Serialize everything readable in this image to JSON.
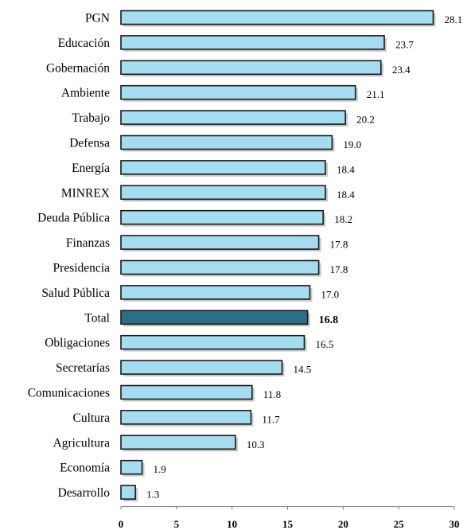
{
  "chart_data": {
    "type": "bar",
    "orientation": "horizontal",
    "categories": [
      "PGN",
      "Educación",
      "Gobernación",
      "Ambiente",
      "Trabajo",
      "Defensa",
      "Energía",
      "MINREX",
      "Deuda Pública",
      "Finanzas",
      "Presidencia",
      "Salud Pública",
      "Total",
      "Obligaciones",
      "Secretarías",
      "Comunicaciones",
      "Cultura",
      "Agricultura",
      "Economía",
      "Desarrollo"
    ],
    "values": [
      28.1,
      23.7,
      23.4,
      21.1,
      20.2,
      19.0,
      18.4,
      18.4,
      18.2,
      17.8,
      17.8,
      17.0,
      16.8,
      16.5,
      14.5,
      11.8,
      11.7,
      10.3,
      1.9,
      1.3
    ],
    "value_labels": [
      "28.1",
      "23.7",
      "23.4",
      "21.1",
      "20.2",
      "19.0",
      "18.4",
      "18.4",
      "18.2",
      "17.8",
      "17.8",
      "17.0",
      "16.8",
      "16.5",
      "14.5",
      "11.8",
      "11.7",
      "10.3",
      "1.9",
      "1.3"
    ],
    "highlight_category": "Total",
    "xlim": [
      0,
      30
    ],
    "xticks": [
      0,
      5,
      10,
      15,
      20,
      25,
      30
    ],
    "title": "",
    "xlabel": "",
    "ylabel": "",
    "grid": false,
    "legend": "none",
    "colors": {
      "bar": "#a6dcef",
      "bar_highlight": "#2b6f86",
      "bar_border": "#1a1a1a",
      "shadow": "#9a9a9a"
    }
  }
}
